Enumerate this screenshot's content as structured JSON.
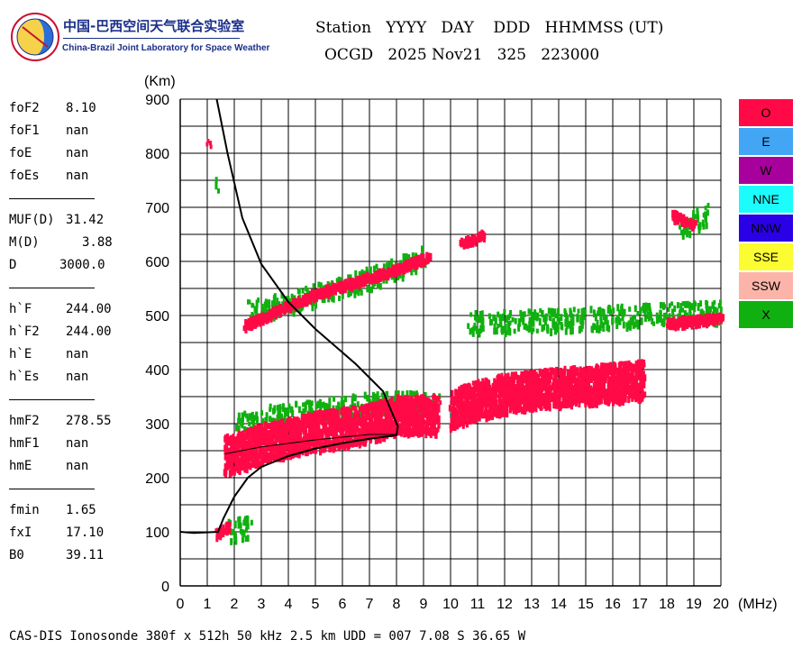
{
  "logo": {
    "name_cn": "中国-巴西空间天气联合实验室",
    "name_en": "China-Brazil Joint Laboratory for Space Weather"
  },
  "header": {
    "line1": "Station   YYYY   DAY    DDD   HHMMSS (UT)",
    "line2": "OCGD   2025 Nov21   325   223000"
  },
  "params": {
    "group1": [
      {
        "label": "foF2",
        "value": "8.10"
      },
      {
        "label": "foF1",
        "value": "nan"
      },
      {
        "label": "foE",
        "value": "nan"
      },
      {
        "label": "foEs",
        "value": "nan"
      }
    ],
    "group2": [
      {
        "label": "MUF(D)",
        "value": "31.42"
      },
      {
        "label": "M(D)",
        "value": "3.88"
      },
      {
        "label": "D",
        "value": "3000.0"
      }
    ],
    "group3": [
      {
        "label": "h`F",
        "value": "244.00"
      },
      {
        "label": "h`F2",
        "value": "244.00"
      },
      {
        "label": "h`E",
        "value": "nan"
      },
      {
        "label": "h`Es",
        "value": "nan"
      }
    ],
    "group4": [
      {
        "label": "hmF2",
        "value": "278.55"
      },
      {
        "label": "hmF1",
        "value": "nan"
      },
      {
        "label": "hmE",
        "value": "nan"
      }
    ],
    "group5": [
      {
        "label": "fmin",
        "value": "1.65"
      },
      {
        "label": "fxI",
        "value": "17.10"
      },
      {
        "label": "B0",
        "value": "39.11"
      }
    ]
  },
  "legend": [
    {
      "label": "O",
      "color": "#ff0a46"
    },
    {
      "label": "E",
      "color": "#42a6f5"
    },
    {
      "label": "W",
      "color": "#a8009c"
    },
    {
      "label": "NNE",
      "color": "#1cfcfc"
    },
    {
      "label": "NNW",
      "color": "#2a00e6"
    },
    {
      "label": "SSE",
      "color": "#fcfc32"
    },
    {
      "label": "SSW",
      "color": "#fcb4a8"
    },
    {
      "label": "X",
      "color": "#10b010"
    }
  ],
  "footer": "CAS-DIS Ionosonde 380f x 512h 50 kHz 2.5 km UDD = 007 7.08 S 36.65 W",
  "chart_data": {
    "type": "scatter",
    "x_unit": "(MHz)",
    "y_unit": "(Km)",
    "xlim": [
      0,
      20
    ],
    "ylim": [
      0,
      900
    ],
    "x_ticks": [
      0,
      1,
      2,
      3,
      4,
      5,
      6,
      7,
      8,
      9,
      10,
      11,
      12,
      13,
      14,
      15,
      16,
      17,
      18,
      19,
      20
    ],
    "y_ticks": [
      0,
      100,
      200,
      300,
      400,
      500,
      600,
      700,
      800,
      900
    ],
    "grid": true,
    "colors": {
      "o_trace": "#ff0a46",
      "x_trace": "#10b010",
      "profile": "#000000"
    },
    "o_trace_segments": [
      [
        [
          1.65,
          245
        ],
        [
          3.0,
          268
        ],
        [
          5.0,
          290
        ],
        [
          7.0,
          305
        ],
        [
          8.0,
          320
        ],
        [
          9.5,
          320
        ]
      ],
      [
        [
          10.0,
          330
        ],
        [
          11.0,
          348
        ],
        [
          12.0,
          360
        ],
        [
          14.0,
          372
        ],
        [
          16.0,
          380
        ],
        [
          17.1,
          385
        ]
      ],
      [
        [
          2.3,
          485
        ],
        [
          5.0,
          545
        ],
        [
          8.0,
          590
        ],
        [
          9.2,
          615
        ]
      ],
      [
        [
          10.3,
          635
        ],
        [
          11.2,
          655
        ]
      ],
      [
        [
          18.2,
          690
        ],
        [
          19.0,
          670
        ]
      ],
      [
        [
          18.0,
          490
        ],
        [
          20.0,
          500
        ]
      ],
      [
        [
          1.3,
          100
        ],
        [
          1.8,
          115
        ]
      ],
      [
        [
          1.0,
          820
        ]
      ]
    ],
    "x_trace_segments": [
      [
        [
          2.0,
          300
        ],
        [
          3.0,
          315
        ],
        [
          6.0,
          335
        ],
        [
          8.0,
          345
        ],
        [
          9.5,
          340
        ]
      ],
      [
        [
          10.5,
          490
        ],
        [
          14.0,
          495
        ],
        [
          17.0,
          505
        ],
        [
          20.0,
          510
        ]
      ],
      [
        [
          2.5,
          510
        ],
        [
          6.0,
          555
        ],
        [
          9.0,
          610
        ]
      ],
      [
        [
          18.5,
          670
        ],
        [
          19.5,
          690
        ]
      ],
      [
        [
          1.8,
          105
        ],
        [
          2.6,
          115
        ]
      ],
      [
        [
          1.2,
          720
        ],
        [
          1.3,
          760
        ]
      ]
    ],
    "true_height_profile": [
      [
        0.0,
        100
      ],
      [
        0.5,
        98
      ],
      [
        1.4,
        100
      ],
      [
        1.6,
        125
      ],
      [
        2.0,
        165
      ],
      [
        2.5,
        200
      ],
      [
        3.0,
        220
      ],
      [
        4.0,
        240
      ],
      [
        5.0,
        254
      ],
      [
        6.0,
        264
      ],
      [
        7.0,
        272
      ],
      [
        8.0,
        278.55
      ],
      [
        8.05,
        295
      ],
      [
        7.5,
        360
      ],
      [
        6.5,
        410
      ],
      [
        5.0,
        475
      ],
      [
        4.0,
        525
      ],
      [
        3.0,
        595
      ],
      [
        2.3,
        680
      ],
      [
        1.75,
        800
      ],
      [
        1.35,
        900
      ]
    ],
    "virtual_height_curve": [
      [
        1.65,
        244
      ],
      [
        3.0,
        257
      ],
      [
        5.0,
        270
      ],
      [
        7.0,
        280
      ],
      [
        8.0,
        280
      ]
    ]
  }
}
